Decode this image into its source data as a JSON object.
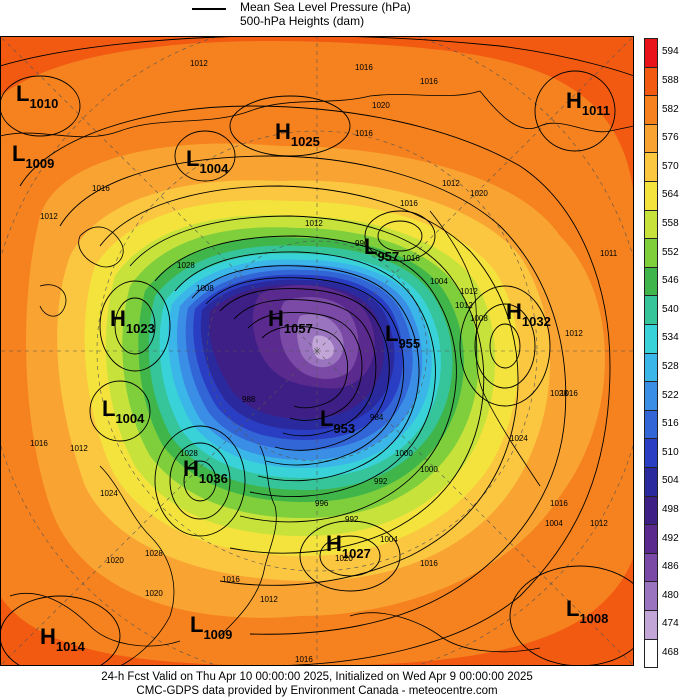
{
  "legend": {
    "mslp_label": "Mean Sea Level Pressure (hPa)",
    "heights_label": "500-hPa Heights (dam)"
  },
  "colorbar": [
    {
      "label": "594",
      "color": "#e8141a"
    },
    {
      "label": "588",
      "color": "#f25a12"
    },
    {
      "label": "582",
      "color": "#f5821e"
    },
    {
      "label": "576",
      "color": "#f9a332"
    },
    {
      "label": "570",
      "color": "#fbc640"
    },
    {
      "label": "564",
      "color": "#f4e33c"
    },
    {
      "label": "558",
      "color": "#c8e23c"
    },
    {
      "label": "552",
      "color": "#7fcf3c"
    },
    {
      "label": "546",
      "color": "#3fb54a"
    },
    {
      "label": "540",
      "color": "#36c49a"
    },
    {
      "label": "534",
      "color": "#38d2d8"
    },
    {
      "label": "528",
      "color": "#3ab7e8"
    },
    {
      "label": "522",
      "color": "#3a8ee6"
    },
    {
      "label": "516",
      "color": "#3266d6"
    },
    {
      "label": "510",
      "color": "#2a3ec4"
    },
    {
      "label": "504",
      "color": "#2a2a9e"
    },
    {
      "label": "498",
      "color": "#3e1f86"
    },
    {
      "label": "492",
      "color": "#5a2a8e"
    },
    {
      "label": "486",
      "color": "#7a4aa6"
    },
    {
      "label": "480",
      "color": "#9a74be"
    },
    {
      "label": "474",
      "color": "#c2a6d8"
    },
    {
      "label": "468",
      "color": "#ffffff"
    }
  ],
  "pressure_centers": [
    {
      "type": "L",
      "value": "1010"
    },
    {
      "type": "L",
      "value": "1009"
    },
    {
      "type": "L",
      "value": "1004"
    },
    {
      "type": "H",
      "value": "1025"
    },
    {
      "type": "H",
      "value": "1011"
    },
    {
      "type": "L",
      "value": "957"
    },
    {
      "type": "H",
      "value": "1032"
    },
    {
      "type": "H",
      "value": "1023"
    },
    {
      "type": "H",
      "value": "1057"
    },
    {
      "type": "L",
      "value": "955"
    },
    {
      "type": "L",
      "value": "1004"
    },
    {
      "type": "L",
      "value": "953"
    },
    {
      "type": "H",
      "value": "1036"
    },
    {
      "type": "H",
      "value": "1027"
    },
    {
      "type": "L",
      "value": "1008"
    },
    {
      "type": "H",
      "value": "1014"
    },
    {
      "type": "L",
      "value": "1009"
    }
  ],
  "isobar_labels": [
    "1012",
    "1016",
    "1020",
    "1016",
    "1011",
    "1012",
    "1012",
    "1016",
    "1012",
    "996",
    "1012",
    "1016",
    "1004",
    "1012",
    "1008",
    "1000",
    "992",
    "1012",
    "1016",
    "1012",
    "1028",
    "1024",
    "1028",
    "1020",
    "1016",
    "1012",
    "1024",
    "1028",
    "1016",
    "984",
    "1020",
    "1016",
    "996",
    "1004",
    "1000",
    "992",
    "988",
    "1008",
    "1016",
    "1020",
    "1016",
    "1012",
    "1004",
    "1028",
    "1016",
    "1020",
    "1016"
  ],
  "footer": {
    "line1": "24-h Fcst Valid on Thu Apr 10 00:00:00 2025, Initialized on Wed Apr  9 00:00:00 2025",
    "line2": "CMC-GDPS data provided by Environment Canada - meteocentre.com"
  }
}
